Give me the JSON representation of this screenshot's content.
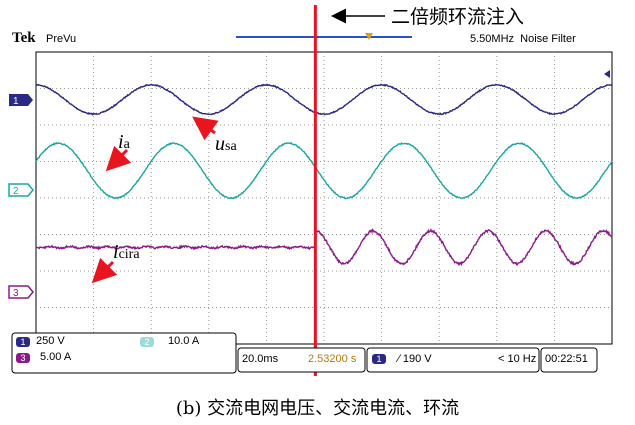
{
  "header": {
    "brand": "Tek",
    "mode": "PreVu",
    "filter": "5.50MHz  Noise Filter"
  },
  "annotation": {
    "injection_label": "二倍频环流注入",
    "ia_symbol": "i",
    "ia_sub": "a",
    "usa_symbol": "u",
    "usa_sub": "sa",
    "icira_symbol": "i",
    "icira_sub": "cira"
  },
  "colors": {
    "ch1": "#2a2a86",
    "ch2": "#1aa7a0",
    "ch3": "#8a1a8a",
    "marker": "#e8141e",
    "trigger_bar": "#2a4fd0",
    "trigger_t": "#d4a020"
  },
  "status_bar": {
    "ch1_badge": "1",
    "ch1_scale": "250 V",
    "ch2_badge": "2",
    "ch2_scale": "10.0 A",
    "ch3_badge": "3",
    "ch3_scale": "5.00 A",
    "timebase": "20.0ms",
    "trigger_pos": "2.53200 s",
    "trig_badge": "1",
    "trigger_level": "∕ 190 V",
    "trigger_freq": "< 10 Hz",
    "clock": "00:22:51"
  },
  "caption": "(b) 交流电网电压、交流电流、环流",
  "chart_data": {
    "type": "line",
    "title": "",
    "x_unit": "div",
    "xlim": [
      0,
      10
    ],
    "divisions": {
      "x": 10,
      "y": 8
    },
    "grid": true,
    "injection_time_div": 4.85,
    "series": [
      {
        "name": "1",
        "label": "u_sa",
        "channel": 1,
        "color": "#2a2a86",
        "cycles_per_div": 0.5,
        "amplitude_div": 0.4,
        "offset_div": 1.3,
        "phase_deg": 0
      },
      {
        "name": "2",
        "label": "i_a",
        "channel": 2,
        "color": "#1aa7a0",
        "cycles_per_div": 0.5,
        "amplitude_div": 0.75,
        "offset_div": 3.25,
        "phase_deg": 290
      },
      {
        "name": "3",
        "label": "i_cira",
        "channel": 3,
        "color": "#8a1a8a",
        "before_injection": {
          "amplitude_div": 0.02
        },
        "after_injection": {
          "cycles_per_div": 1.0,
          "amplitude_div": 0.45
        },
        "offset_div": 5.35
      }
    ]
  }
}
